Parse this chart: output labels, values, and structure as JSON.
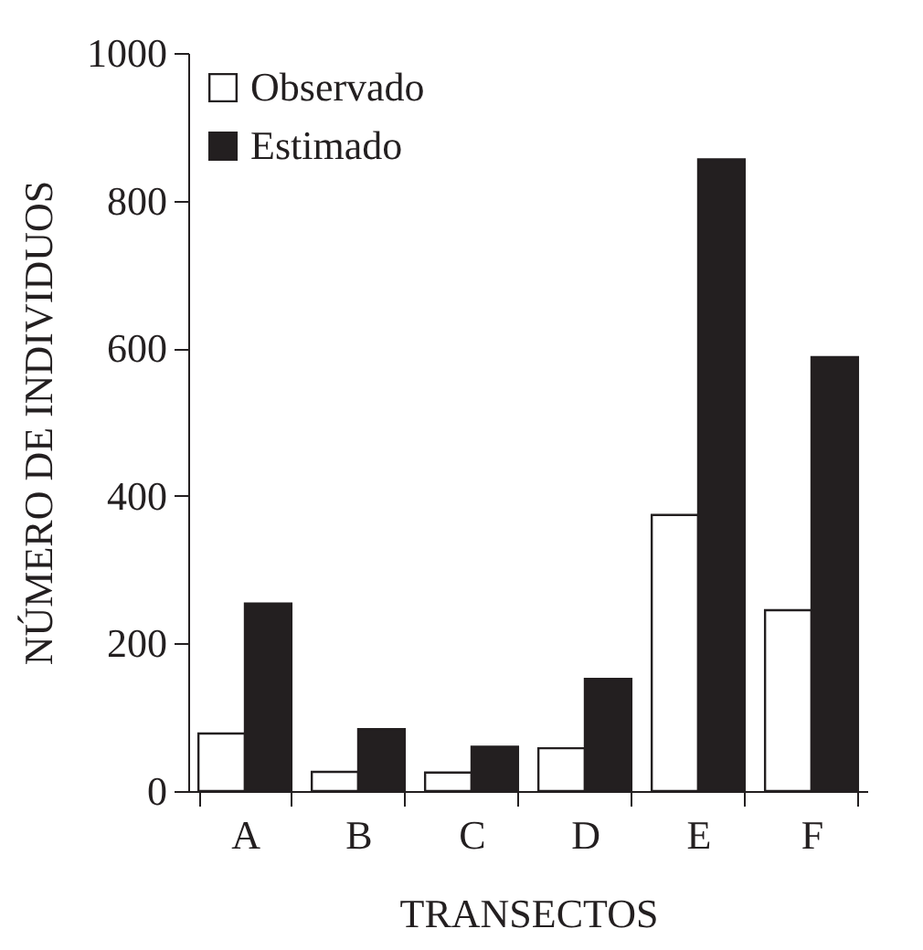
{
  "chart_data": {
    "type": "bar",
    "xlabel": "TRANSECTOS",
    "ylabel": "NÚMERO DE INDIVIDUOS",
    "categories": [
      "A",
      "B",
      "C",
      "D",
      "E",
      "F"
    ],
    "series": [
      {
        "name": "Observado",
        "color": "#ffffff",
        "values": [
          78,
          26,
          25,
          58,
          374,
          245
        ]
      },
      {
        "name": "Estimado",
        "color": "#231f20",
        "values": [
          254,
          84,
          60,
          152,
          856,
          588
        ]
      }
    ],
    "ylim": [
      0,
      1000
    ],
    "yticks": [
      0,
      200,
      400,
      600,
      800,
      1000
    ],
    "grid": false,
    "legend": "top left"
  }
}
